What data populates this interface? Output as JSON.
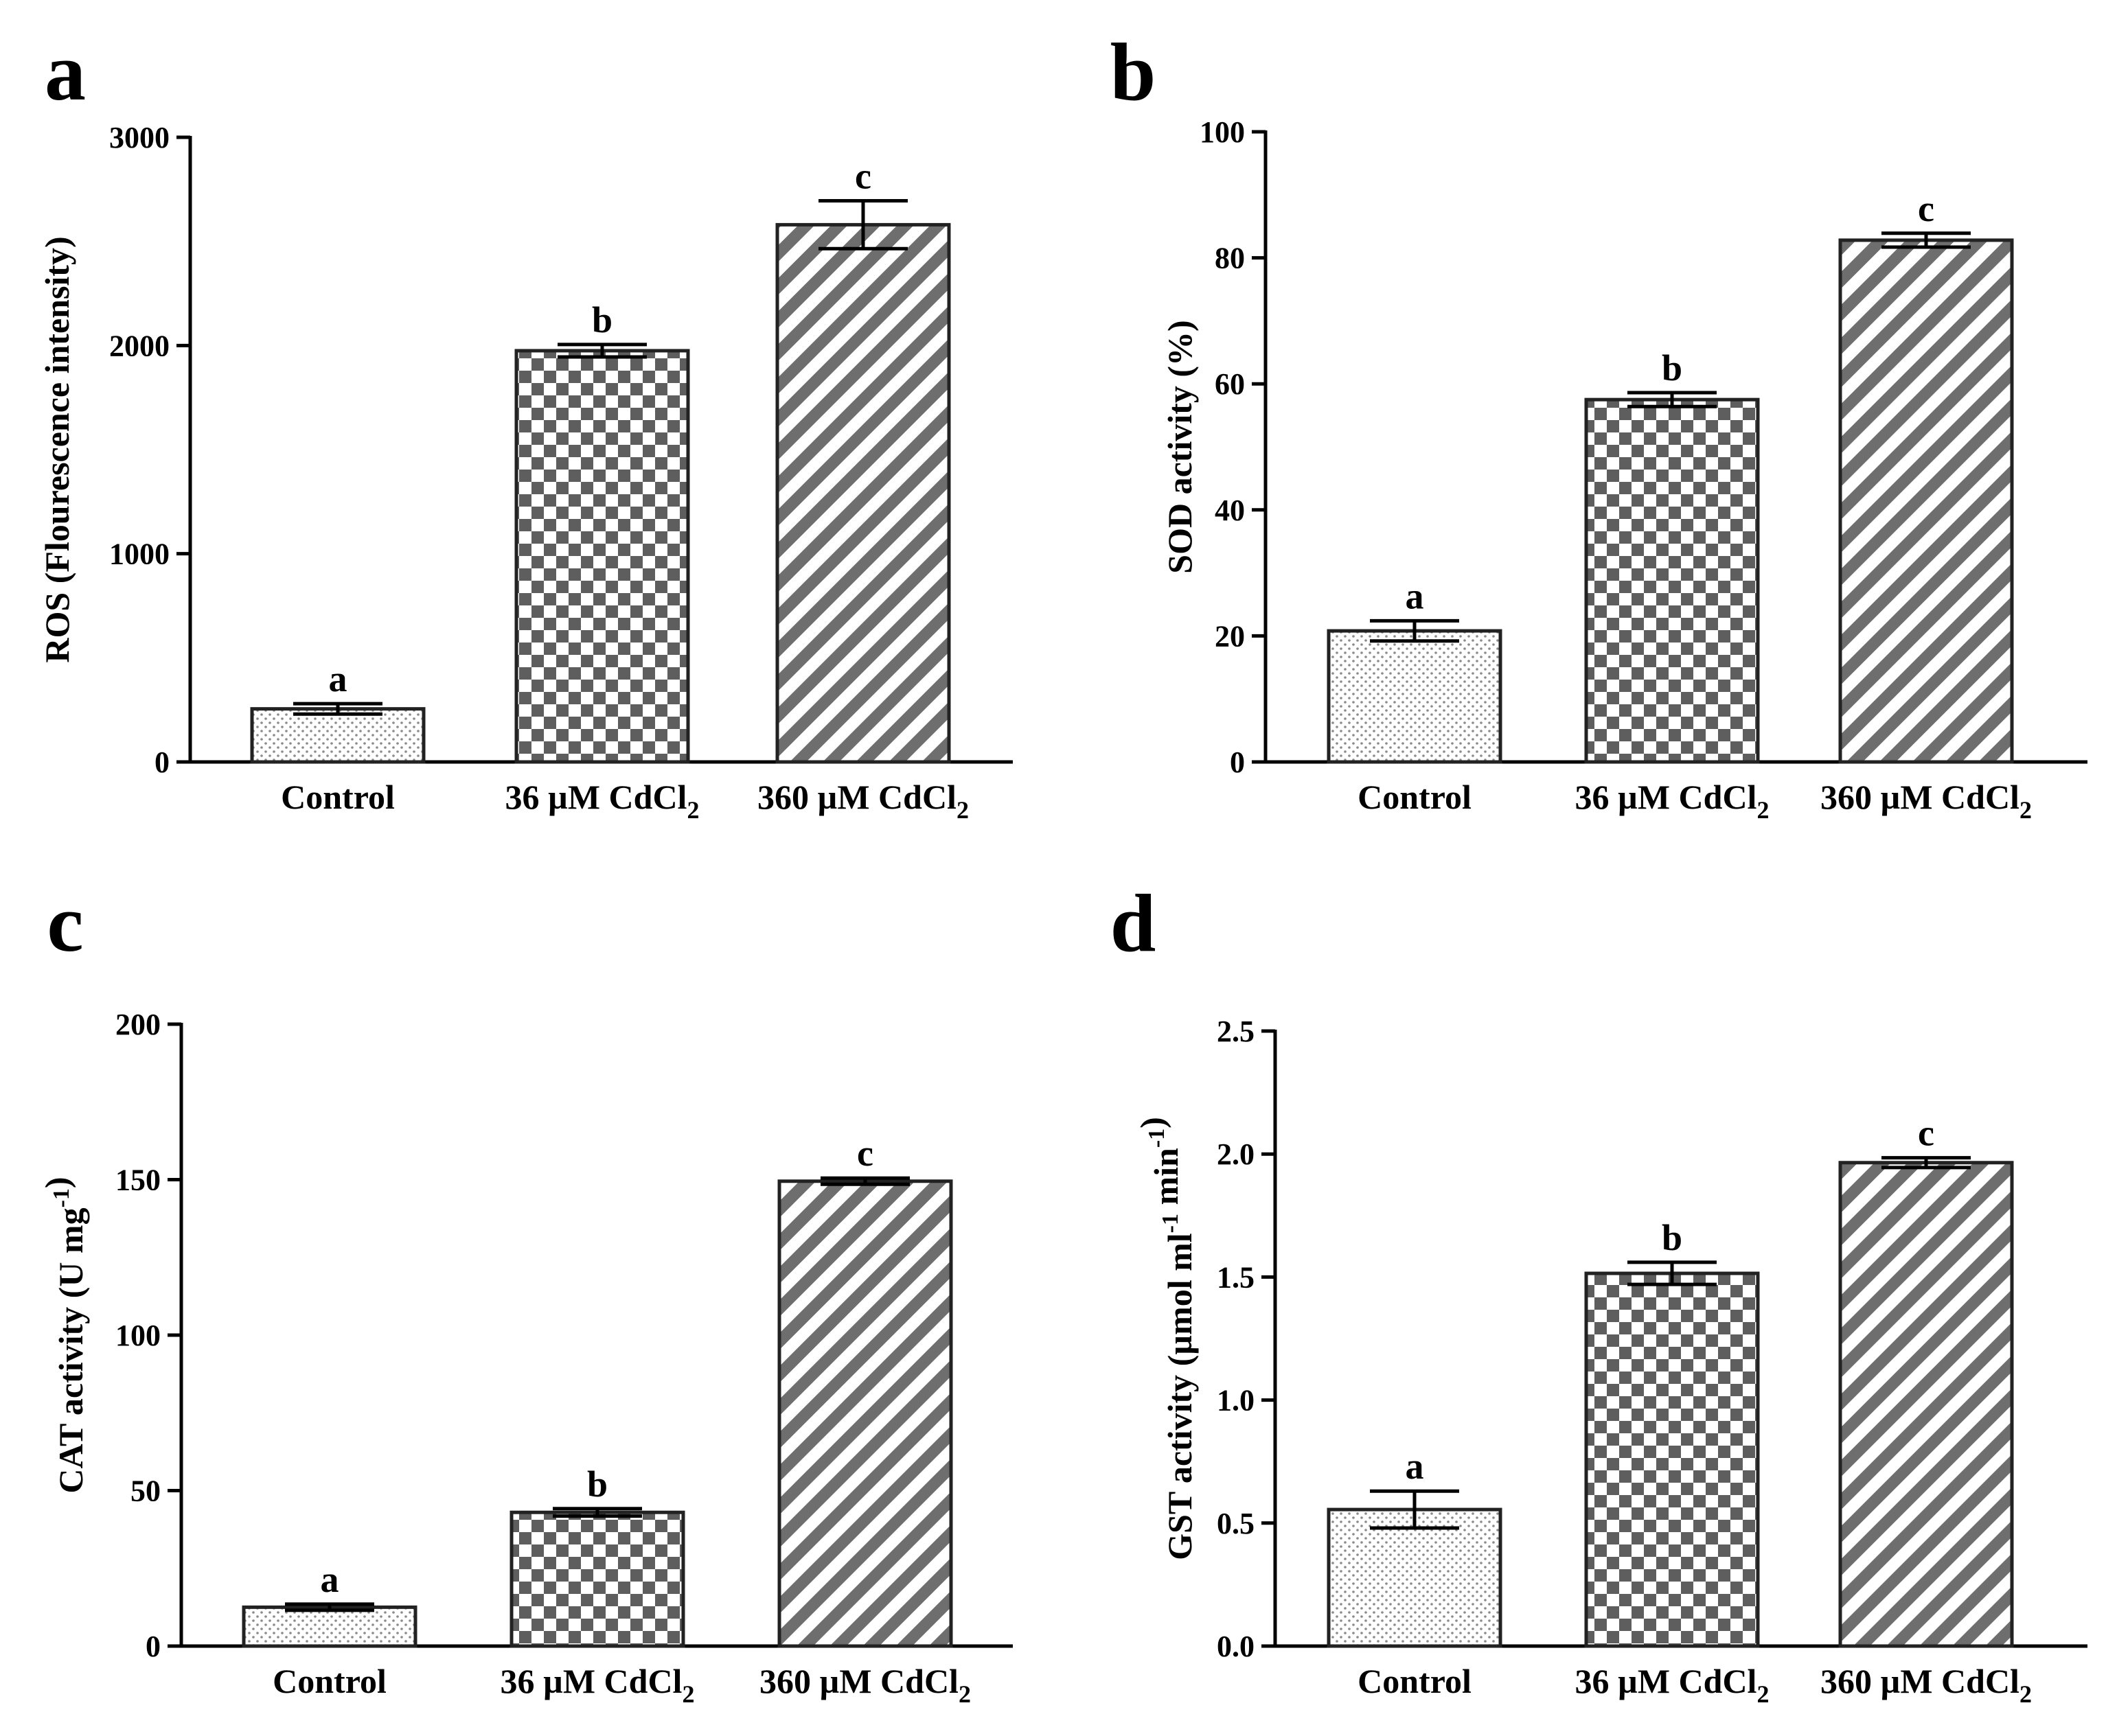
{
  "chart_data": [
    {
      "type": "bar",
      "panel": "a",
      "categories": [
        "Control",
        "36 µM CdCl₂",
        "360 µM CdCl₂"
      ],
      "values": [
        255,
        1975,
        2580
      ],
      "errors": [
        25,
        30,
        115
      ],
      "significance": [
        "a",
        "b",
        "c"
      ],
      "patterns": [
        "dots",
        "checker",
        "stripes"
      ],
      "ylabel": "ROS (Flourescence intensity)",
      "ylim": [
        0,
        3000
      ],
      "yticks": [
        0,
        1000,
        2000,
        3000
      ],
      "tick_labels": [
        "0",
        "1000",
        "2000",
        "3000"
      ]
    },
    {
      "type": "bar",
      "panel": "b",
      "categories": [
        "Control",
        "36 µM CdCl₂",
        "360 µM CdCl₂"
      ],
      "values": [
        20.8,
        57.5,
        82.8
      ],
      "errors": [
        1.6,
        1.1,
        1.1
      ],
      "significance": [
        "a",
        "b",
        "c"
      ],
      "patterns": [
        "dots",
        "checker",
        "stripes"
      ],
      "ylabel": "SOD activity (%)",
      "ylim": [
        0,
        100
      ],
      "yticks": [
        0,
        20,
        40,
        60,
        80,
        100
      ],
      "tick_labels": [
        "0",
        "20",
        "40",
        "60",
        "80",
        "100"
      ]
    },
    {
      "type": "bar",
      "panel": "c",
      "categories": [
        "Control",
        "36 µM CdCl₂",
        "360 µM CdCl₂"
      ],
      "values": [
        12.5,
        43.0,
        149.5
      ],
      "errors": [
        1.0,
        1.2,
        1.0
      ],
      "significance": [
        "a",
        "b",
        "c"
      ],
      "patterns": [
        "dots",
        "checker",
        "stripes"
      ],
      "ylabel": "CAT activity (U mg⁻¹)",
      "ylim": [
        0,
        200
      ],
      "yticks": [
        0,
        50,
        100,
        150,
        200
      ],
      "tick_labels": [
        "0",
        "50",
        "100",
        "150",
        "200"
      ]
    },
    {
      "type": "bar",
      "panel": "d",
      "categories": [
        "Control",
        "36 µM CdCl₂",
        "360 µM CdCl₂"
      ],
      "values": [
        0.555,
        1.515,
        1.965
      ],
      "errors": [
        0.075,
        0.045,
        0.02
      ],
      "significance": [
        "a",
        "b",
        "c"
      ],
      "patterns": [
        "dots",
        "checker",
        "stripes"
      ],
      "ylabel": "GST activity (µmol ml⁻¹ min⁻¹)",
      "ylim": [
        0,
        2.5
      ],
      "yticks": [
        0,
        0.5,
        1.0,
        1.5,
        2.0,
        2.5
      ],
      "tick_labels": [
        "0.0",
        "0.5",
        "1.0",
        "1.5",
        "2.0",
        "2.5"
      ]
    }
  ]
}
